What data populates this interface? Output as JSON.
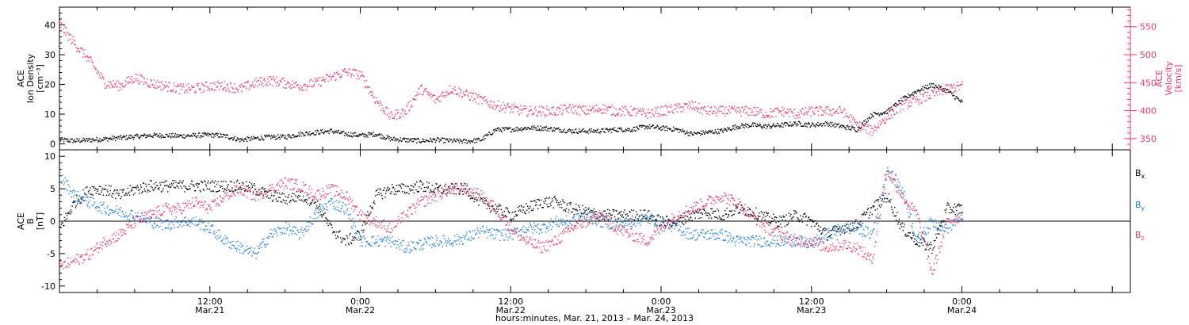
{
  "colors": {
    "density": "#000000",
    "velocity": "#e8386a",
    "bx": "#000000",
    "by": "#1f7fdc",
    "bz": "#e8386a"
  },
  "chart_data": [
    {
      "type": "scatter",
      "panel": "top",
      "ylabel_left_lines": [
        "ACE",
        "Ion Density",
        "[cm⁻³]"
      ],
      "ylabel_right_lines": [
        "ACE",
        "Velocity",
        "[km/s]"
      ],
      "ylim_left": [
        -2,
        46
      ],
      "yticks_left": [
        0,
        10,
        20,
        30,
        40
      ],
      "ylim_right": [
        330,
        585
      ],
      "yticks_right": [
        350,
        400,
        450,
        500,
        550
      ],
      "series": [
        {
          "key": "density",
          "axis": "left",
          "spread": 0.8,
          "x": [
            0.0,
            0.05,
            0.1,
            0.15,
            0.2,
            0.25,
            0.3,
            0.35,
            0.4,
            0.45,
            0.5,
            0.55,
            0.6,
            0.65,
            0.7,
            0.75,
            0.8,
            0.85,
            0.9,
            0.95,
            1.0,
            1.05,
            1.1,
            1.15,
            1.2,
            1.25,
            1.3,
            1.35,
            1.4,
            1.45,
            1.5,
            1.55,
            1.6,
            1.65,
            1.7,
            1.75,
            1.8,
            1.85,
            1.9,
            1.95,
            2.0,
            2.05,
            2.1,
            2.15,
            2.2,
            2.25,
            2.3,
            2.35,
            2.4,
            2.45,
            2.5,
            2.55,
            2.6,
            2.65,
            2.7,
            2.75,
            2.8,
            2.85,
            2.9,
            2.95,
            3.0
          ],
          "y": [
            1.5,
            1.2,
            1.5,
            1.8,
            2.2,
            2.6,
            3.0,
            3.0,
            2.8,
            3.0,
            3.2,
            2.8,
            1.5,
            2.0,
            2.5,
            2.5,
            3.5,
            4.0,
            4.5,
            3.5,
            3.0,
            3.5,
            1.8,
            1.5,
            1.2,
            1.5,
            1.2,
            1.0,
            1.5,
            5.0,
            5.0,
            5.5,
            5.5,
            5.0,
            4.5,
            4.5,
            4.5,
            5.0,
            5.0,
            6.0,
            5.5,
            5.0,
            3.5,
            4.0,
            4.5,
            6.0,
            6.5,
            6.0,
            6.5,
            7.0,
            6.5,
            7.0,
            6.0,
            5.0,
            10.0,
            11.0,
            15.0,
            18.0,
            20.0,
            18.0,
            14.0
          ]
        },
        {
          "key": "velocity",
          "axis": "right",
          "spread": 9,
          "x": [
            0.0,
            0.05,
            0.1,
            0.15,
            0.2,
            0.25,
            0.3,
            0.35,
            0.4,
            0.45,
            0.5,
            0.55,
            0.6,
            0.65,
            0.7,
            0.75,
            0.8,
            0.85,
            0.9,
            0.95,
            1.0,
            1.05,
            1.1,
            1.15,
            1.2,
            1.25,
            1.3,
            1.35,
            1.4,
            1.45,
            1.5,
            1.55,
            1.6,
            1.65,
            1.7,
            1.75,
            1.8,
            1.85,
            1.9,
            1.95,
            2.0,
            2.05,
            2.1,
            2.15,
            2.2,
            2.25,
            2.3,
            2.35,
            2.4,
            2.45,
            2.5,
            2.55,
            2.6,
            2.65,
            2.7,
            2.75,
            2.8,
            2.85,
            2.9,
            2.95,
            3.0
          ],
          "y": [
            555,
            520,
            490,
            450,
            445,
            460,
            450,
            445,
            440,
            440,
            445,
            445,
            440,
            450,
            455,
            450,
            445,
            450,
            460,
            470,
            465,
            420,
            390,
            400,
            440,
            420,
            440,
            430,
            420,
            410,
            405,
            400,
            400,
            400,
            405,
            400,
            405,
            400,
            400,
            395,
            400,
            405,
            410,
            400,
            400,
            400,
            400,
            395,
            400,
            395,
            400,
            400,
            400,
            375,
            365,
            390,
            410,
            420,
            430,
            440,
            445
          ]
        }
      ]
    },
    {
      "type": "scatter",
      "panel": "bottom",
      "ylabel_left_lines": [
        "ACE",
        "B",
        "[nT]"
      ],
      "ylim_left": [
        -11,
        11
      ],
      "yticks_left": [
        -10,
        -5,
        0,
        5,
        10
      ],
      "zero_line": true,
      "legend": [
        "Bx",
        "By",
        "Bz"
      ],
      "legend_placement": "right",
      "series": [
        {
          "key": "bx",
          "name": "Bx",
          "spread": 0.9,
          "x": [
            0.0,
            0.05,
            0.1,
            0.15,
            0.2,
            0.25,
            0.3,
            0.35,
            0.4,
            0.45,
            0.5,
            0.55,
            0.6,
            0.65,
            0.7,
            0.75,
            0.8,
            0.85,
            0.9,
            0.95,
            1.0,
            1.05,
            1.1,
            1.15,
            1.2,
            1.25,
            1.3,
            1.35,
            1.4,
            1.45,
            1.5,
            1.55,
            1.6,
            1.65,
            1.7,
            1.75,
            1.8,
            1.85,
            1.9,
            1.95,
            2.0,
            2.05,
            2.1,
            2.15,
            2.2,
            2.25,
            2.3,
            2.35,
            2.4,
            2.45,
            2.5,
            2.55,
            2.6,
            2.65,
            2.7,
            2.75,
            2.8,
            2.85,
            2.9,
            2.95,
            3.0
          ],
          "y": [
            -1,
            3,
            5,
            5,
            4,
            5,
            5.5,
            5.5,
            5.5,
            5.5,
            5.5,
            5.5,
            5.5,
            5,
            4,
            3.5,
            4,
            3,
            -1,
            -3,
            -2,
            4,
            5,
            5,
            5.5,
            5,
            5,
            5,
            3,
            2,
            1,
            2,
            3,
            3,
            2,
            1.5,
            1,
            1,
            1,
            1,
            0,
            0,
            1,
            1.5,
            1,
            2,
            1.5,
            0.5,
            0,
            1,
            0,
            -2,
            -1,
            -0.5,
            2,
            4,
            -1,
            -3,
            -4,
            2,
            2
          ]
        },
        {
          "key": "by",
          "name": "By",
          "spread": 0.9,
          "x": [
            0.0,
            0.05,
            0.1,
            0.15,
            0.2,
            0.25,
            0.3,
            0.35,
            0.4,
            0.45,
            0.5,
            0.55,
            0.6,
            0.65,
            0.7,
            0.75,
            0.8,
            0.85,
            0.9,
            0.95,
            1.0,
            1.05,
            1.1,
            1.15,
            1.2,
            1.25,
            1.3,
            1.35,
            1.4,
            1.45,
            1.5,
            1.55,
            1.6,
            1.65,
            1.7,
            1.75,
            1.8,
            1.85,
            1.9,
            1.95,
            2.0,
            2.05,
            2.1,
            2.15,
            2.2,
            2.25,
            2.3,
            2.35,
            2.4,
            2.45,
            2.5,
            2.55,
            2.6,
            2.65,
            2.7,
            2.75,
            2.8,
            2.85,
            2.9,
            2.95,
            3.0
          ],
          "y": [
            7,
            4,
            3,
            2,
            1.5,
            1,
            0,
            -0.5,
            0,
            0,
            -1,
            -3,
            -4,
            -5,
            -2,
            -1,
            -2,
            1,
            3,
            2,
            -3,
            -3,
            -3,
            -4,
            -3.5,
            -3,
            -3,
            -2.5,
            -1.5,
            -2,
            -2,
            -1,
            -1,
            0,
            0,
            1,
            0,
            -0.5,
            0,
            0.5,
            0,
            -1,
            -2,
            -2,
            -2,
            -3,
            -3,
            -3,
            -3,
            -3,
            -3.5,
            -2,
            -1,
            -1,
            -2,
            8,
            5,
            -3,
            0,
            -1,
            1
          ]
        },
        {
          "key": "bz",
          "name": "Bz",
          "spread": 0.9,
          "x": [
            0.0,
            0.05,
            0.1,
            0.15,
            0.2,
            0.25,
            0.3,
            0.35,
            0.4,
            0.45,
            0.5,
            0.55,
            0.6,
            0.65,
            0.7,
            0.75,
            0.8,
            0.85,
            0.9,
            0.95,
            1.0,
            1.05,
            1.1,
            1.15,
            1.2,
            1.25,
            1.3,
            1.35,
            1.4,
            1.45,
            1.5,
            1.55,
            1.6,
            1.65,
            1.7,
            1.75,
            1.8,
            1.85,
            1.9,
            1.95,
            2.0,
            2.05,
            2.1,
            2.15,
            2.2,
            2.25,
            2.3,
            2.35,
            2.4,
            2.45,
            2.5,
            2.55,
            2.6,
            2.65,
            2.7,
            2.75,
            2.8,
            2.85,
            2.9,
            2.95,
            3.0
          ],
          "y": [
            -7,
            -6,
            -5,
            -3,
            -2,
            0,
            1,
            2,
            2,
            3,
            2,
            4,
            5,
            4,
            5,
            6,
            5.5,
            4,
            5,
            4,
            1,
            0,
            -1,
            1,
            3,
            4,
            5,
            5,
            4,
            2,
            -1,
            -3,
            -4,
            -3,
            -1,
            0,
            1,
            -1,
            -2,
            -3,
            -1,
            1,
            2,
            3,
            4,
            3,
            1,
            -1,
            -2,
            -3,
            -3,
            -4,
            -3.5,
            -4,
            -6,
            8,
            4,
            1,
            -8,
            0,
            1
          ]
        }
      ]
    }
  ],
  "x_axis": {
    "xlim": [
      0,
      3.56
    ],
    "major_ticks": [
      {
        "x": 0.5,
        "time": "12:00",
        "date": "Mar.21"
      },
      {
        "x": 1.0,
        "time": "0:00",
        "date": "Mar.22"
      },
      {
        "x": 1.5,
        "time": "12:00",
        "date": "Mar.22"
      },
      {
        "x": 2.0,
        "time": "0:00",
        "date": "Mar.23"
      },
      {
        "x": 2.5,
        "time": "12:00",
        "date": "Mar.23"
      },
      {
        "x": 3.0,
        "time": "0:00",
        "date": "Mar.24"
      }
    ],
    "minor_step": 0.125,
    "label": "hours:minutes, Mar. 21, 2013 – Mar. 24, 2013"
  },
  "legend_labels": {
    "bx_main": "B",
    "bx_sub": "x",
    "by_main": "B",
    "by_sub": "y",
    "bz_main": "B",
    "bz_sub": "z"
  }
}
